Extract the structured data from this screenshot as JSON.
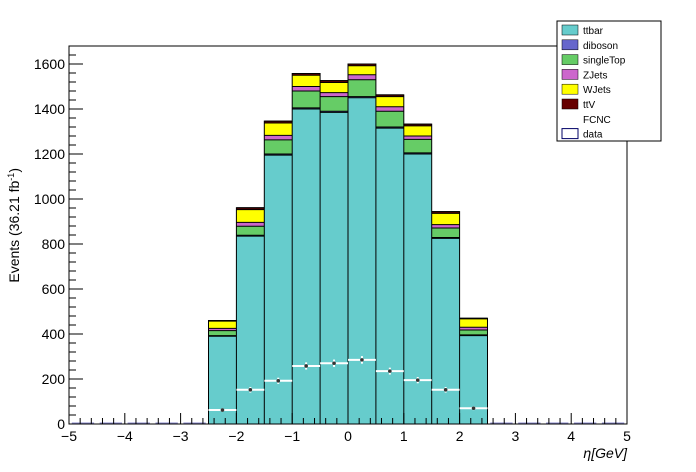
{
  "chart_data": {
    "type": "bar",
    "stacked": true,
    "xlabel": "η[GeV]",
    "ylabel": "Events (36.21 fb",
    "ylabel_sup": "-1",
    "ylabel_close": ")",
    "xlim": [
      -5,
      5
    ],
    "ylim": [
      0,
      1680
    ],
    "xticks": [
      -5,
      -4,
      -3,
      -2,
      -1,
      0,
      1,
      2,
      3,
      4,
      5
    ],
    "yticks": [
      0,
      200,
      400,
      600,
      800,
      1000,
      1200,
      1400,
      1600
    ],
    "bin_edges": [
      -2.5,
      -2.0,
      -1.5,
      -1.0,
      -0.5,
      0.0,
      0.5,
      1.0,
      1.5,
      2.0,
      2.5
    ],
    "legend_position": "top-right",
    "series": [
      {
        "name": "ttbar",
        "color": "#66cccc",
        "values": [
          390,
          835,
          1195,
          1400,
          1385,
          1450,
          1315,
          1200,
          825,
          393
        ]
      },
      {
        "name": "diboson",
        "color": "#6666cc",
        "values": [
          3,
          4,
          5,
          5,
          5,
          5,
          5,
          5,
          4,
          3
        ]
      },
      {
        "name": "singleTop",
        "color": "#66cc66",
        "values": [
          22,
          40,
          63,
          75,
          65,
          75,
          70,
          60,
          42,
          22
        ]
      },
      {
        "name": "ZJets",
        "color": "#cc66cc",
        "values": [
          10,
          17,
          20,
          20,
          18,
          22,
          20,
          15,
          15,
          12
        ]
      },
      {
        "name": "WJets",
        "color": "#ffff00",
        "values": [
          32,
          57,
          55,
          50,
          45,
          40,
          45,
          45,
          50,
          37
        ]
      },
      {
        "name": "ttV",
        "color": "#660000",
        "values": [
          3,
          8,
          8,
          8,
          8,
          8,
          8,
          8,
          8,
          3
        ]
      },
      {
        "name": "FCNC",
        "color": "#ffffff",
        "values": []
      },
      {
        "name": "data",
        "color": "#ffffff",
        "values": [
          62,
          152,
          192,
          258,
          270,
          285,
          235,
          195,
          152,
          70
        ]
      }
    ]
  }
}
